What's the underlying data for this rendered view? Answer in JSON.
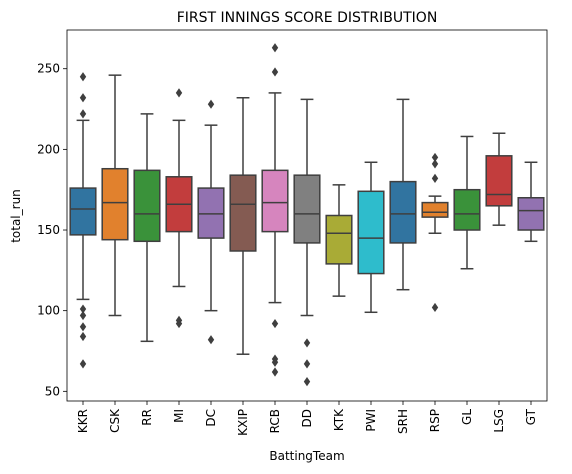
{
  "chart_data": {
    "type": "box",
    "title": "FIRST INNINGS SCORE DISTRIBUTION",
    "xlabel": "BattingTeam",
    "ylabel": "total_run",
    "ylim": [
      44,
      274
    ],
    "yticks": [
      50,
      100,
      150,
      200,
      250
    ],
    "grid": false,
    "legend": "none",
    "box_stroke": "#3f3f3f",
    "categories": [
      "KKR",
      "CSK",
      "RR",
      "MI",
      "DC",
      "KXIP",
      "RCB",
      "DD",
      "KTK",
      "PWI",
      "SRH",
      "RSP",
      "GL",
      "LSG",
      "GT"
    ],
    "series": [
      {
        "category": "KKR",
        "color": "#3274a1",
        "whislo": 107,
        "q1": 147,
        "med": 163,
        "q3": 176,
        "whishi": 218,
        "fliers": [
          222,
          232,
          245,
          101,
          97,
          90,
          84,
          67
        ]
      },
      {
        "category": "CSK",
        "color": "#e1812c",
        "whislo": 97,
        "q1": 144,
        "med": 167,
        "q3": 188,
        "whishi": 246,
        "fliers": []
      },
      {
        "category": "RR",
        "color": "#3a923a",
        "whislo": 81,
        "q1": 143,
        "med": 160,
        "q3": 187,
        "whishi": 222,
        "fliers": []
      },
      {
        "category": "MI",
        "color": "#c03d3e",
        "whislo": 115,
        "q1": 149,
        "med": 166,
        "q3": 183,
        "whishi": 218,
        "fliers": [
          235,
          94,
          92
        ]
      },
      {
        "category": "DC",
        "color": "#9372b2",
        "whislo": 100,
        "q1": 145,
        "med": 160,
        "q3": 176,
        "whishi": 215,
        "fliers": [
          228,
          82
        ]
      },
      {
        "category": "KXIP",
        "color": "#845b53",
        "whislo": 73,
        "q1": 137,
        "med": 166,
        "q3": 184,
        "whishi": 232,
        "fliers": []
      },
      {
        "category": "RCB",
        "color": "#d684bd",
        "whislo": 105,
        "q1": 149,
        "med": 167,
        "q3": 187,
        "whishi": 235,
        "fliers": [
          263,
          248,
          92,
          70,
          68,
          62
        ]
      },
      {
        "category": "DD",
        "color": "#7f7f7f",
        "whislo": 97,
        "q1": 142,
        "med": 160,
        "q3": 184,
        "whishi": 231,
        "fliers": [
          80,
          67,
          56
        ]
      },
      {
        "category": "KTK",
        "color": "#a9aa35",
        "whislo": 109,
        "q1": 129,
        "med": 148,
        "q3": 159,
        "whishi": 178,
        "fliers": []
      },
      {
        "category": "PWI",
        "color": "#2ebece",
        "whislo": 99,
        "q1": 123,
        "med": 145,
        "q3": 174,
        "whishi": 192,
        "fliers": []
      },
      {
        "category": "SRH",
        "color": "#3274a1",
        "whislo": 113,
        "q1": 142,
        "med": 160,
        "q3": 180,
        "whishi": 231,
        "fliers": []
      },
      {
        "category": "RSP",
        "color": "#e1812c",
        "whislo": 148,
        "q1": 158,
        "med": 161,
        "q3": 167,
        "whishi": 171,
        "fliers": [
          195,
          191,
          182,
          102
        ]
      },
      {
        "category": "GL",
        "color": "#3a923a",
        "whislo": 126,
        "q1": 150,
        "med": 160,
        "q3": 175,
        "whishi": 208,
        "fliers": []
      },
      {
        "category": "LSG",
        "color": "#c03d3e",
        "whislo": 153,
        "q1": 165,
        "med": 172,
        "q3": 196,
        "whishi": 210,
        "fliers": []
      },
      {
        "category": "GT",
        "color": "#9372b2",
        "whislo": 143,
        "q1": 150,
        "med": 162,
        "q3": 170,
        "whishi": 192,
        "fliers": []
      }
    ]
  }
}
